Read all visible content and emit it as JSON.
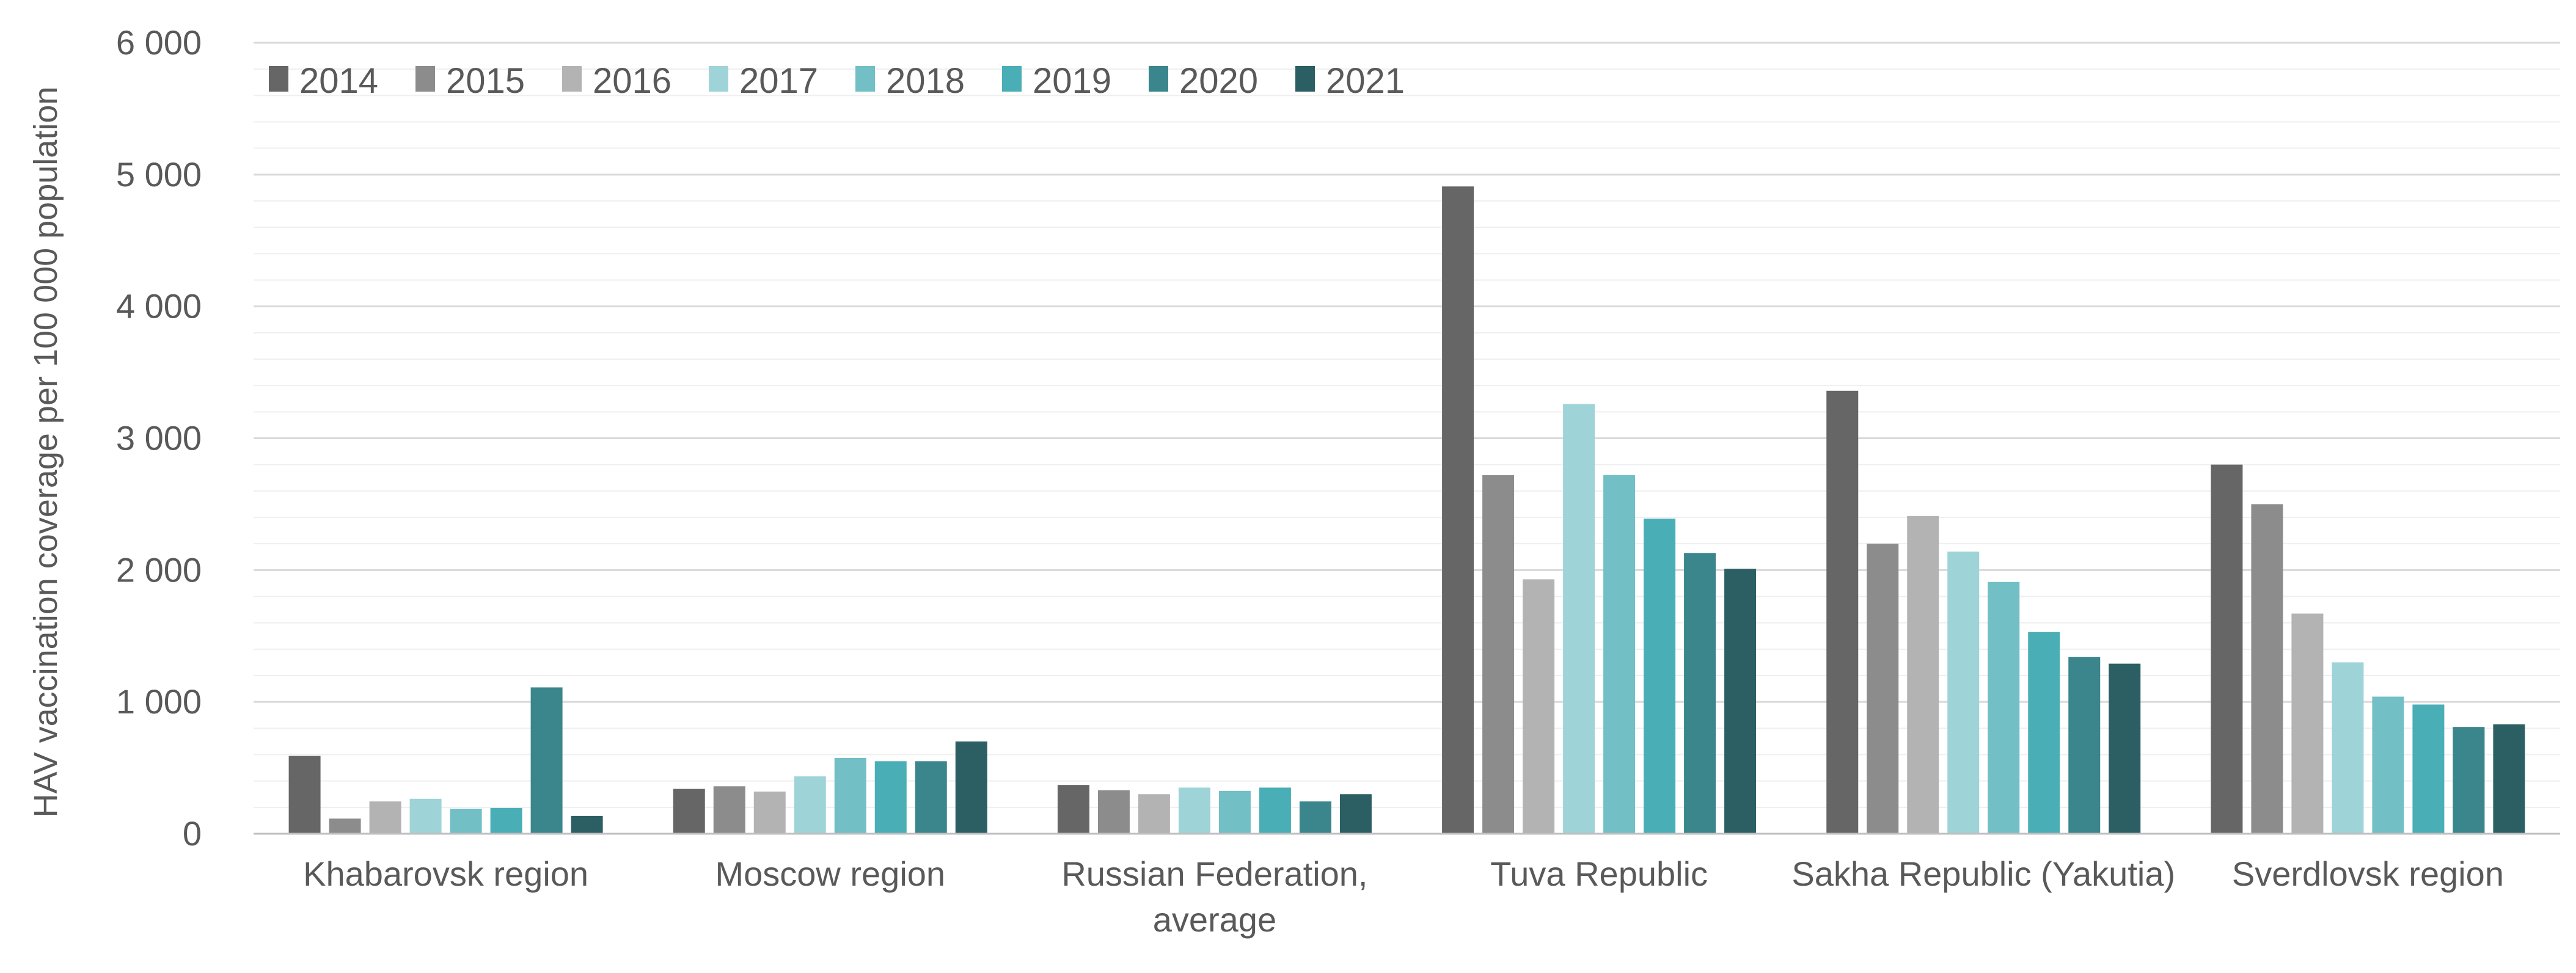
{
  "chart_data": {
    "type": "bar",
    "title": "",
    "xlabel": "",
    "ylabel": "HAV vaccination coverage per 100 000 population",
    "ylim": [
      0,
      6000
    ],
    "major_ticks": [
      0,
      1000,
      2000,
      3000,
      4000,
      5000,
      6000
    ],
    "tick_labels": [
      "0",
      "1 000",
      "2 000",
      "3 000",
      "4 000",
      "5 000",
      "6 000"
    ],
    "minor_step": 200,
    "grid": true,
    "legend_position": "top-left",
    "categories": [
      [
        "Khabarovsk region"
      ],
      [
        "Moscow region"
      ],
      [
        "Russian Federation,",
        "average"
      ],
      [
        "Tuva Republic"
      ],
      [
        "Sakha Republic (Yakutia)"
      ],
      [
        "Sverdlovsk region"
      ]
    ],
    "series": [
      {
        "name": "2014",
        "color": "#666666",
        "values": [
          590,
          340,
          370,
          4910,
          3360,
          2800
        ]
      },
      {
        "name": "2015",
        "color": "#8c8c8c",
        "values": [
          115,
          360,
          330,
          2720,
          2200,
          2500
        ]
      },
      {
        "name": "2016",
        "color": "#b3b3b3",
        "values": [
          245,
          320,
          300,
          1930,
          2410,
          1670
        ]
      },
      {
        "name": "2017",
        "color": "#9ed4d8",
        "values": [
          265,
          435,
          350,
          3260,
          2140,
          1300
        ]
      },
      {
        "name": "2018",
        "color": "#72bfc6",
        "values": [
          190,
          575,
          325,
          2720,
          1910,
          1040
        ]
      },
      {
        "name": "2019",
        "color": "#4aaeb6",
        "values": [
          195,
          550,
          350,
          2390,
          1530,
          980
        ]
      },
      {
        "name": "2020",
        "color": "#3a868c",
        "values": [
          1110,
          550,
          245,
          2130,
          1340,
          810
        ]
      },
      {
        "name": "2021",
        "color": "#2c5f63",
        "values": [
          135,
          700,
          300,
          2010,
          1290,
          830
        ]
      }
    ]
  }
}
